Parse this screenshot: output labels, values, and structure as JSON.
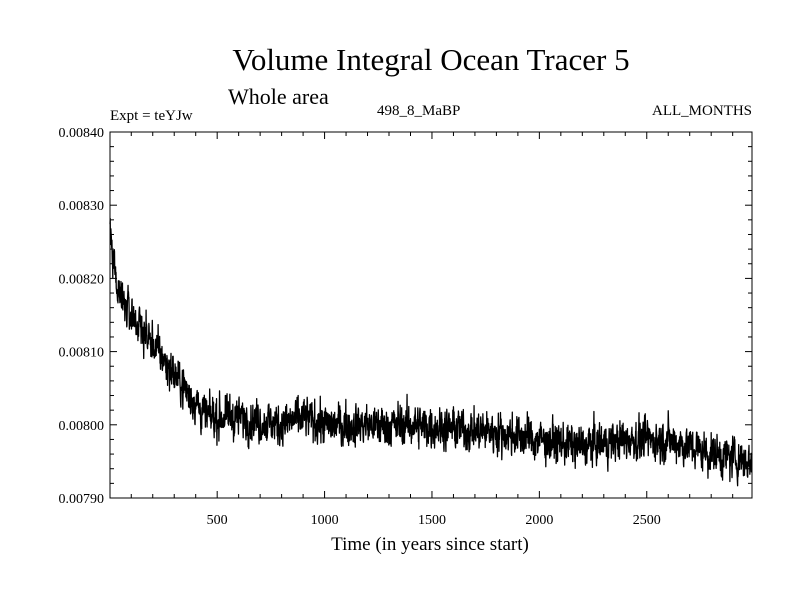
{
  "chart_data": {
    "type": "line",
    "title": "Volume Integral Ocean Tracer 5",
    "subtitle": "Whole area",
    "experiment": "Expt = teYJw",
    "period": "498_8_MaBP",
    "months": "ALL_MONTHS",
    "xlabel": "Time (in years since start)",
    "ylabel": "",
    "xlim": [
      1,
      2990
    ],
    "ylim": [
      0.0079,
      0.0084
    ],
    "xticks": [
      500,
      1000,
      1500,
      2000,
      2500
    ],
    "xtick_labels": [
      "500",
      "1000",
      "1500",
      "2000",
      "2500"
    ],
    "yticks": [
      0.0079,
      0.008,
      0.0081,
      0.0082,
      0.0083,
      0.0084
    ],
    "ytick_labels": [
      "0.00790",
      "0.00800",
      "0.00810",
      "0.00820",
      "0.00830",
      "0.00840"
    ],
    "grid": false,
    "series": [
      {
        "name": "Volume Integral Ocean Tracer 5",
        "color": "#000000",
        "trend_x": [
          1,
          30,
          60,
          100,
          150,
          200,
          250,
          300,
          350,
          400,
          450,
          500,
          600,
          700,
          800,
          900,
          1000,
          1200,
          1400,
          1600,
          1800,
          2000,
          2200,
          2400,
          2600,
          2800,
          2990
        ],
        "trend_y": [
          0.00826,
          0.0082,
          0.00817,
          0.00815,
          0.00813,
          0.00811,
          0.00809,
          0.00807,
          0.00805,
          0.00803,
          0.00801,
          0.00801,
          0.00801,
          0.008005,
          0.008,
          0.00801,
          0.008,
          0.008,
          0.008,
          0.007995,
          0.00799,
          0.00798,
          0.00797,
          0.00798,
          0.00798,
          0.00796,
          0.00795
        ],
        "noise_amplitude": 2.2e-05,
        "samples": 2990
      }
    ]
  }
}
